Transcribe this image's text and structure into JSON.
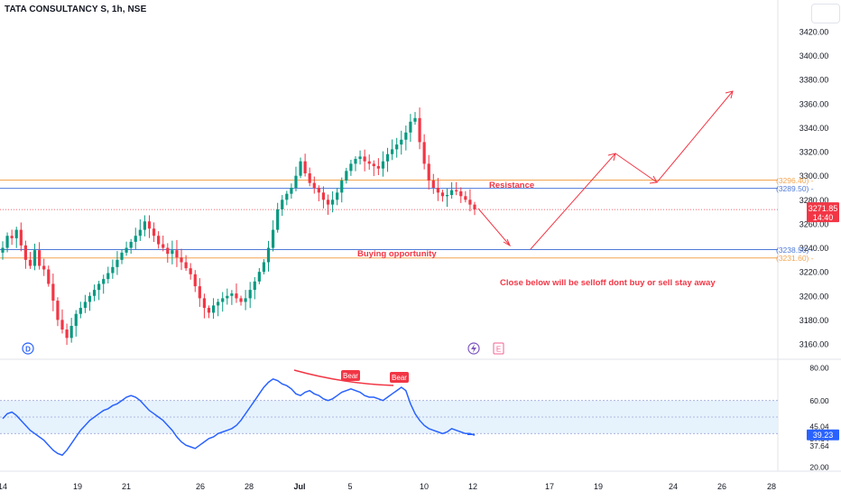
{
  "header": {
    "symbol_line": "TATA CONSULTANCY S, 1h, NSE"
  },
  "price_axis": {
    "labels": [
      "3420.00",
      "3400.00",
      "3380.00",
      "3360.00",
      "3340.00",
      "3320.00",
      "3300.00",
      "3280.00",
      "3260.00",
      "3240.00",
      "3220.00",
      "3200.00",
      "3180.00",
      "3160.00"
    ]
  },
  "levels": [
    {
      "name": "resistance-upper",
      "value": 3296.4,
      "label": "(3296.40)",
      "color": "#f2a550"
    },
    {
      "name": "resistance-lower",
      "value": 3289.5,
      "label": "(3289.50)",
      "color": "#4f7ad8"
    },
    {
      "name": "support-upper",
      "value": 3238.5,
      "label": "(3238.50)",
      "color": "#4f7ad8"
    },
    {
      "name": "support-lower",
      "value": 3231.6,
      "label": "(3231.60)",
      "color": "#f2a550"
    }
  ],
  "last_price": {
    "value": "3271.85",
    "time": "14:40",
    "color": "#f23645"
  },
  "annotations": {
    "resistance": "Resistance",
    "buying": "Buying opportunity",
    "note": "Close below will be selloff dont buy or sell stay away",
    "bear1": "Bear",
    "bear2": "Bear",
    "marker_d": "D",
    "marker_e": "E"
  },
  "rsi": {
    "axis_labels": [
      "80.00",
      "60.00",
      "45.04",
      "45.04",
      "37.64",
      "37.64",
      "20.00"
    ],
    "current": "39.23",
    "upper_band": 60,
    "lower_band": 40,
    "mid_line": 50
  },
  "x_axis": {
    "labels": [
      "14",
      "19",
      "21",
      "26",
      "28",
      "Jul",
      "5",
      "10",
      "12",
      "17",
      "19",
      "24",
      "26",
      "28"
    ]
  },
  "chart_data": {
    "type": "candlestick",
    "title": "TATA CONSULTANCY S, 1h, NSE",
    "ylim": [
      3150,
      3430
    ],
    "close_series": [
      3240,
      3250,
      3248,
      3255,
      3242,
      3230,
      3225,
      3238,
      3225,
      3222,
      3210,
      3196,
      3180,
      3172,
      3165,
      3175,
      3185,
      3190,
      3195,
      3200,
      3205,
      3210,
      3214,
      3219,
      3224,
      3230,
      3236,
      3240,
      3245,
      3250,
      3255,
      3262,
      3256,
      3250,
      3243,
      3240,
      3235,
      3238,
      3232,
      3228,
      3223,
      3218,
      3208,
      3198,
      3190,
      3186,
      3192,
      3195,
      3198,
      3200,
      3202,
      3198,
      3195,
      3198,
      3205,
      3212,
      3220,
      3228,
      3240,
      3255,
      3272,
      3280,
      3285,
      3290,
      3300,
      3312,
      3302,
      3294,
      3290,
      3286,
      3280,
      3276,
      3280,
      3286,
      3296,
      3304,
      3310,
      3314,
      3316,
      3312,
      3310,
      3308,
      3306,
      3312,
      3318,
      3322,
      3326,
      3330,
      3336,
      3345,
      3348,
      3328,
      3310,
      3296,
      3290,
      3286,
      3283,
      3284,
      3288,
      3287,
      3283,
      3280,
      3276,
      3272
    ],
    "rsi_series": [
      49,
      52,
      53,
      51,
      48,
      45,
      42,
      40,
      38,
      36,
      33,
      30,
      28,
      27,
      30,
      34,
      38,
      42,
      45,
      48,
      50,
      52,
      54,
      55,
      57,
      58,
      60,
      62,
      63,
      62,
      60,
      57,
      54,
      52,
      50,
      48,
      45,
      42,
      38,
      35,
      33,
      32,
      31,
      33,
      35,
      37,
      38,
      40,
      41,
      42,
      43,
      45,
      48,
      52,
      56,
      60,
      64,
      68,
      71,
      73,
      72,
      70,
      69,
      67,
      64,
      63,
      65,
      66,
      64,
      63,
      61,
      60,
      61,
      63,
      65,
      66,
      67,
      66,
      65,
      63,
      62,
      62,
      61,
      60,
      62,
      64,
      66,
      68,
      66,
      58,
      52,
      48,
      45,
      43,
      42,
      41,
      40,
      41,
      43,
      42,
      41,
      40,
      40,
      39
    ],
    "resistance": [
      3296.4,
      3289.5
    ],
    "support": [
      3238.5,
      3231.6
    ],
    "last": 3271.85
  }
}
